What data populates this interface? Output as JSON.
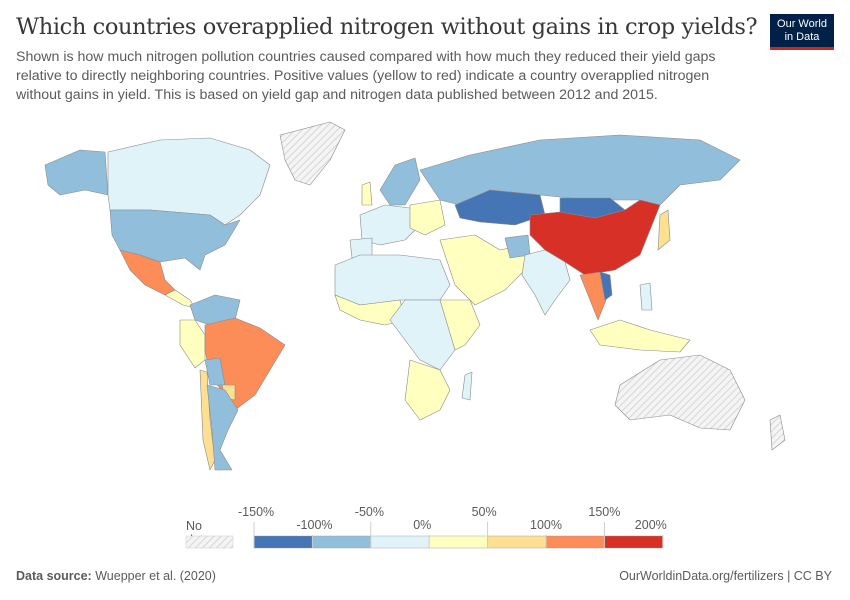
{
  "header": {
    "title": "Which countries overapplied nitrogen without gains in crop yields?",
    "subtitle": "Shown is how much nitrogen pollution countries caused compared with how much they reduced their yield gaps relative to directly neighboring countries. Positive values (yellow to red) indicate a country overapplied nitrogen without gains in yield. This is based on yield gap and nitrogen data published between 2012 and 2015.",
    "logo": {
      "line1": "Our World",
      "line2": "in Data"
    }
  },
  "chart_data": {
    "type": "choropleth",
    "title": "Which countries overapplied nitrogen without gains in crop yields?",
    "legend": {
      "no_data_label": "No data",
      "ticks": [
        "-150%",
        "-100%",
        "-50%",
        "0%",
        "50%",
        "100%",
        "150%",
        "200%"
      ],
      "bins": [
        {
          "from": -150,
          "to": -100,
          "color": "#4575b4"
        },
        {
          "from": -100,
          "to": -50,
          "color": "#91bfdb"
        },
        {
          "from": -50,
          "to": 0,
          "color": "#e0f3f8"
        },
        {
          "from": 0,
          "to": 50,
          "color": "#ffffbf"
        },
        {
          "from": 50,
          "to": 100,
          "color": "#fee090"
        },
        {
          "from": 100,
          "to": 150,
          "color": "#fc8d59"
        },
        {
          "from": 150,
          "to": 200,
          "color": "#d73027"
        }
      ],
      "placement": "bottom"
    }
  },
  "footer": {
    "source_label": "Data source:",
    "source": "Wuepper et al. (2020)",
    "url": "OurWorldinData.org/fertilizers | CC BY"
  }
}
